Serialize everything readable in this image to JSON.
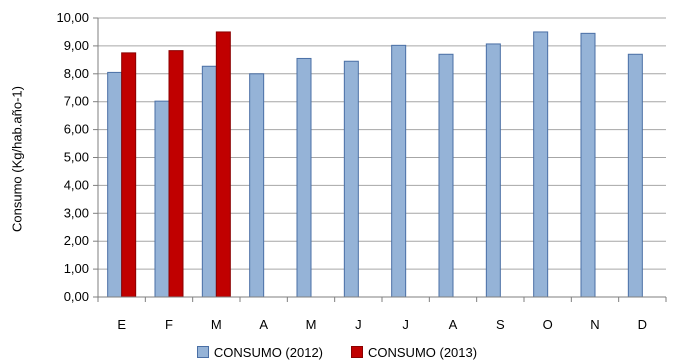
{
  "chart_data": {
    "type": "bar",
    "categories": [
      "E",
      "F",
      "M",
      "A",
      "M",
      "J",
      "J",
      "A",
      "S",
      "O",
      "N",
      "D"
    ],
    "series": [
      {
        "name": "CONSUMO (2012)",
        "values": [
          8.05,
          7.02,
          8.27,
          8.0,
          8.55,
          8.45,
          9.02,
          8.7,
          9.07,
          9.5,
          9.45,
          8.7
        ],
        "color": "#95b3d7",
        "border": "#4a6fa5"
      },
      {
        "name": "CONSUMO (2013)",
        "values": [
          8.75,
          8.83,
          9.5,
          null,
          null,
          null,
          null,
          null,
          null,
          null,
          null,
          null
        ],
        "color": "#c00000",
        "border": "#8b0000"
      }
    ],
    "ylabel": "Consumo (Kg/hab.año-1)",
    "xlabel": "",
    "ylim": [
      0,
      10
    ],
    "yticks": [
      "0,00",
      "1,00",
      "2,00",
      "3,00",
      "4,00",
      "5,00",
      "6,00",
      "7,00",
      "8,00",
      "9,00",
      "10,00"
    ],
    "grid": true,
    "legend_position": "bottom"
  }
}
